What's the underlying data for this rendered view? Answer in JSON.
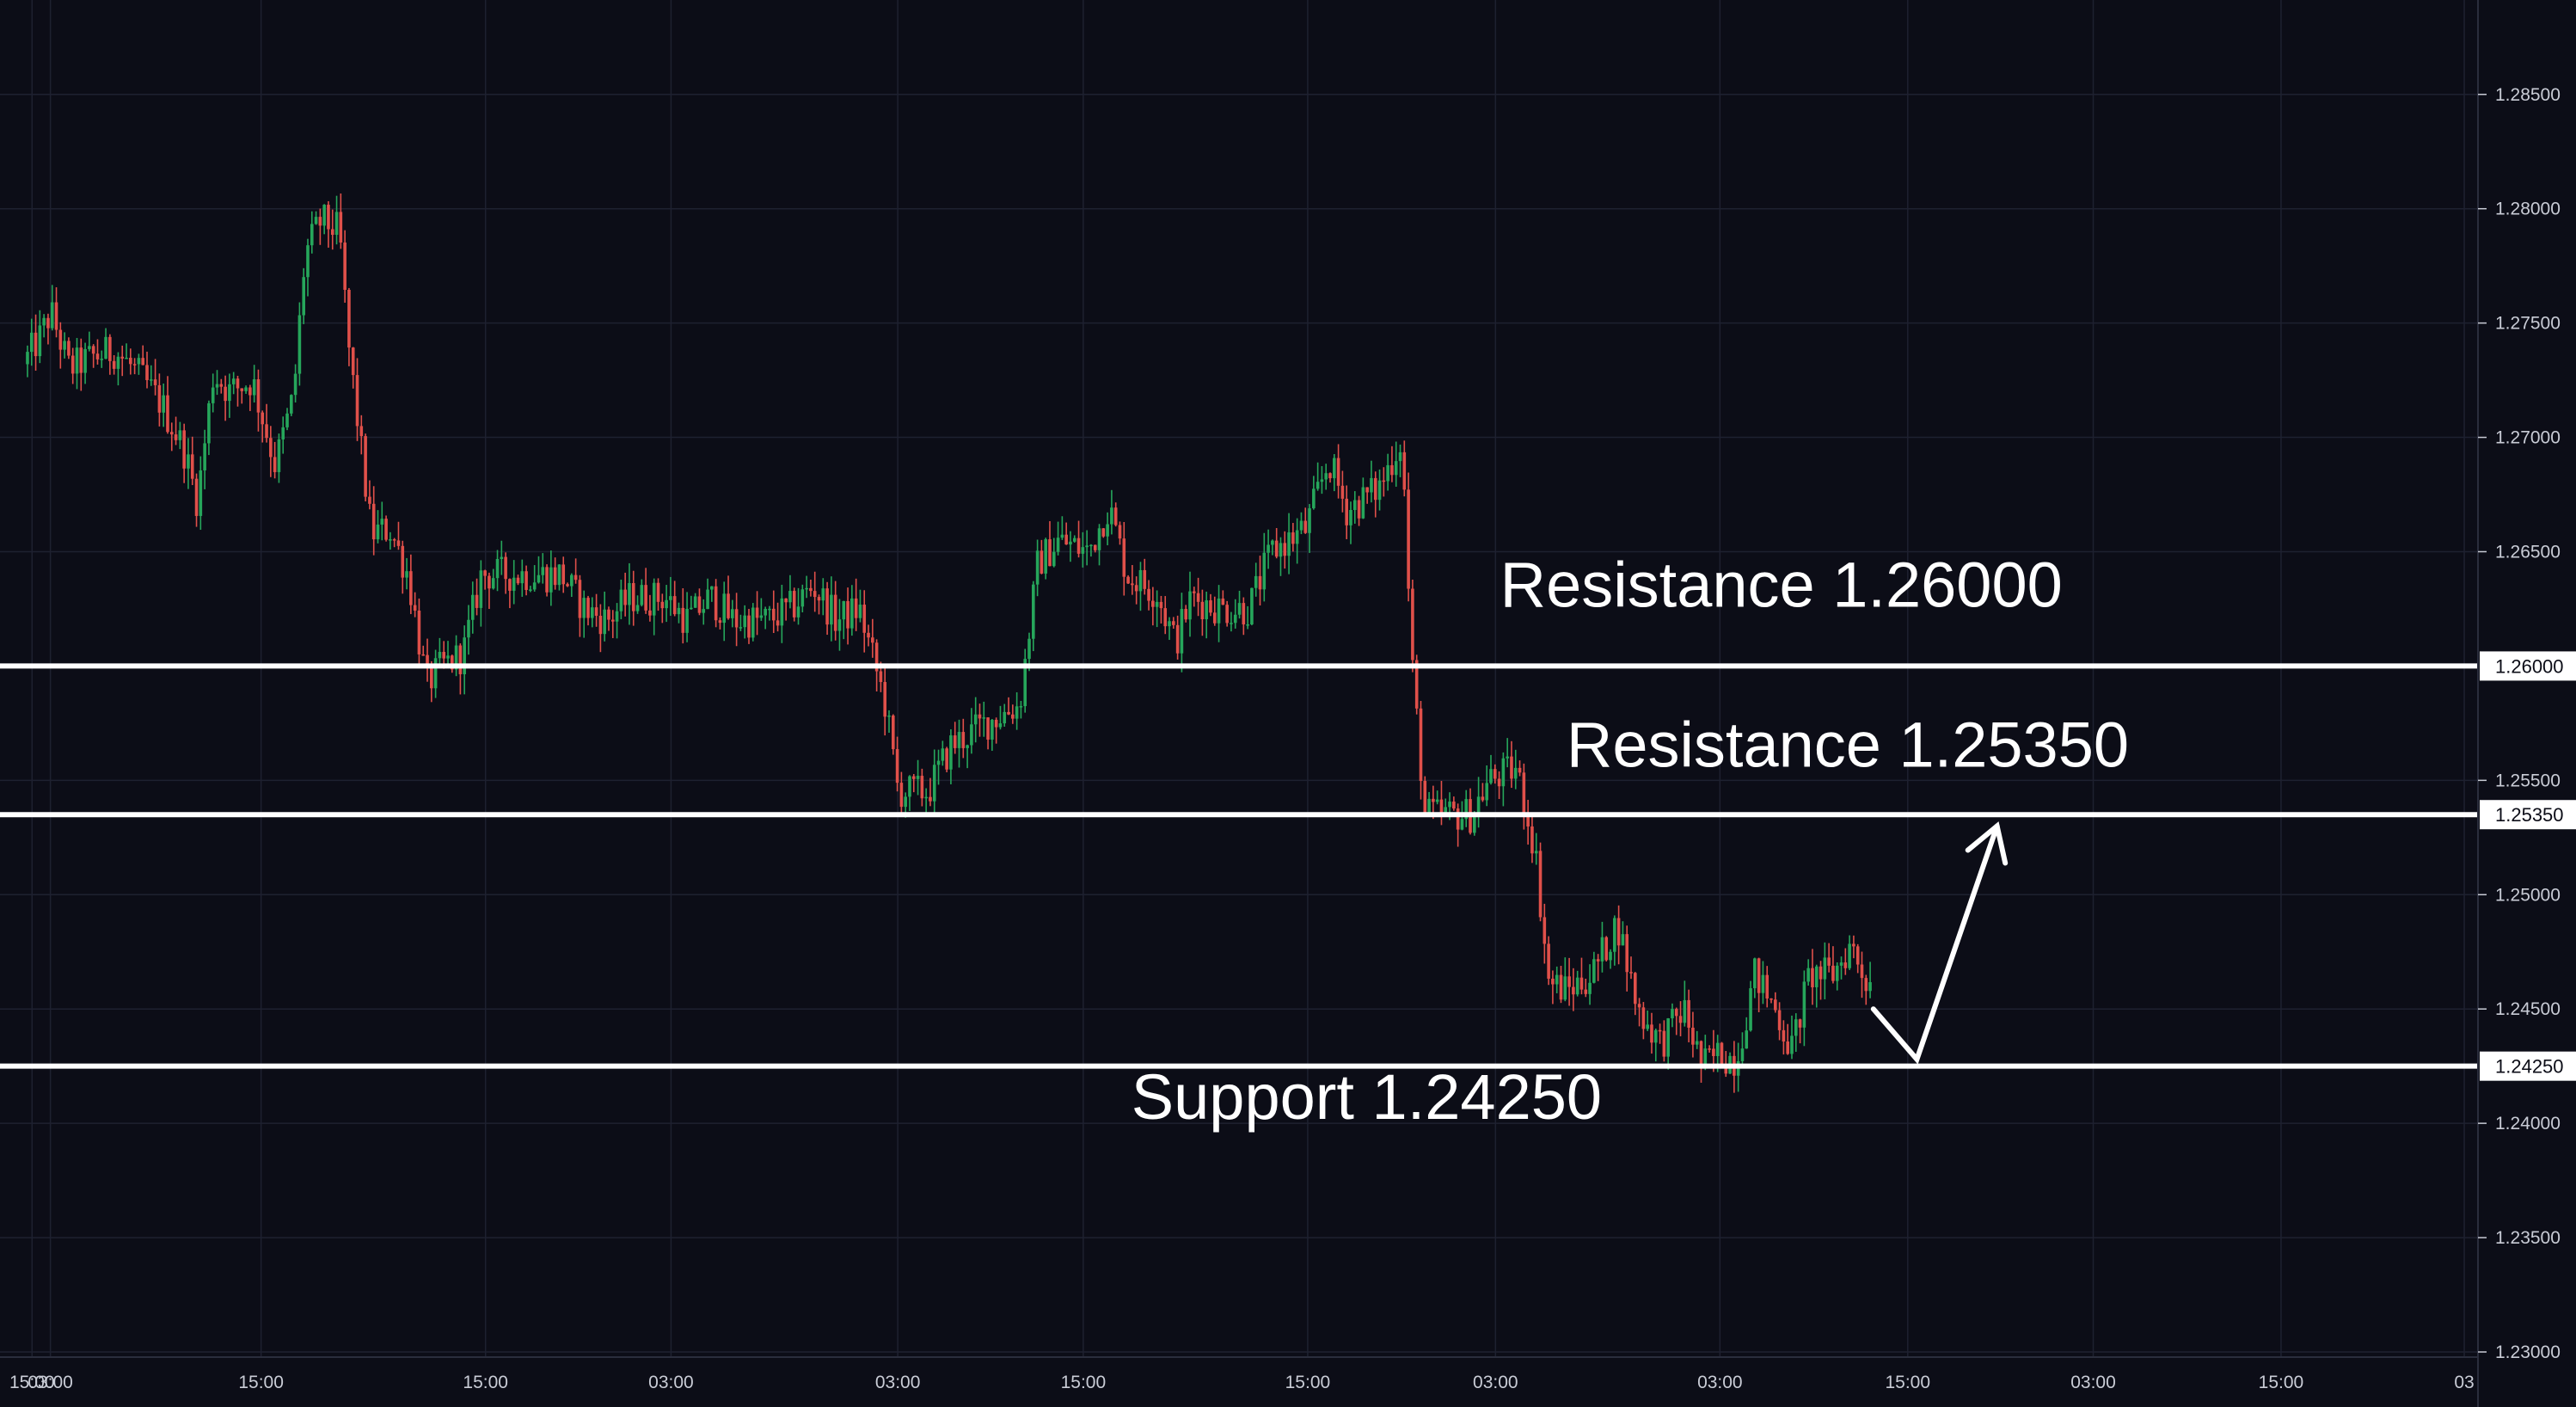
{
  "colors": {
    "background": "#0c0d17",
    "grid": "#1e2130",
    "axis_text": "#c9ccd6",
    "candle_up": "#26a65b",
    "candle_down": "#e0504a",
    "level_line": "#ffffff",
    "level_label_bg": "#ffffff",
    "level_label_text": "#0c0d17",
    "annotation": "#ffffff"
  },
  "chart_data": {
    "type": "candlestick",
    "title": "",
    "xlabel": "",
    "ylabel": "",
    "grid": true,
    "ylim": [
      1.23,
      1.288
    ],
    "y_axis_side": "right",
    "y_ticks": [
      "1.28500",
      "1.28000",
      "1.27500",
      "1.27000",
      "1.26500",
      "1.25500",
      "1.25000",
      "1.24500",
      "1.24000",
      "1.23500",
      "1.23000"
    ],
    "x_ticks": [
      "15:00",
      "03:00",
      "15:00",
      "15:00",
      "03:00",
      "03:00",
      "15:00",
      "15:00",
      "03:00",
      "03:00",
      "15:00",
      "03:00",
      "15:00",
      "03"
    ],
    "x_tick_positions": [
      0.2,
      1.0,
      10.2,
      20.0,
      28.1,
      38.0,
      46.1,
      55.9,
      64.1,
      73.9,
      82.1,
      90.2,
      98.4,
      106.4
    ],
    "x_range": [
      -1.2,
      107.0
    ],
    "price_path": [
      [
        0,
        1.2732
      ],
      [
        0.8,
        1.2745
      ],
      [
        1.2,
        1.2755
      ],
      [
        2.0,
        1.273
      ],
      [
        3.0,
        1.2735
      ],
      [
        4.0,
        1.2738
      ],
      [
        5.0,
        1.2728
      ],
      [
        6.0,
        1.2715
      ],
      [
        7.0,
        1.2695
      ],
      [
        7.6,
        1.2672
      ],
      [
        8.3,
        1.2728
      ],
      [
        9.0,
        1.272
      ],
      [
        10.0,
        1.2725
      ],
      [
        11.0,
        1.2688
      ],
      [
        11.8,
        1.2718
      ],
      [
        12.3,
        1.278
      ],
      [
        13.0,
        1.2795
      ],
      [
        13.8,
        1.279
      ],
      [
        14.2,
        1.274
      ],
      [
        14.8,
        1.269
      ],
      [
        15.2,
        1.2658
      ],
      [
        16.0,
        1.266
      ],
      [
        16.8,
        1.264
      ],
      [
        17.6,
        1.2592
      ],
      [
        18.3,
        1.26
      ],
      [
        19.2,
        1.2605
      ],
      [
        20.0,
        1.264
      ],
      [
        21.0,
        1.264
      ],
      [
        22.0,
        1.264
      ],
      [
        23.5,
        1.264
      ],
      [
        24.5,
        1.2625
      ],
      [
        25.5,
        1.262
      ],
      [
        26.5,
        1.263
      ],
      [
        28.0,
        1.263
      ],
      [
        29.0,
        1.262
      ],
      [
        30.0,
        1.263
      ],
      [
        31.0,
        1.262
      ],
      [
        32.5,
        1.262
      ],
      [
        33.5,
        1.2625
      ],
      [
        34.5,
        1.2635
      ],
      [
        35.5,
        1.262
      ],
      [
        36.5,
        1.2625
      ],
      [
        37.6,
        1.2585
      ],
      [
        38.2,
        1.2545
      ],
      [
        39.5,
        1.2545
      ],
      [
        40.5,
        1.2565
      ],
      [
        42.0,
        1.2575
      ],
      [
        43.5,
        1.2583
      ],
      [
        44.3,
        1.2645
      ],
      [
        45.2,
        1.2655
      ],
      [
        46.5,
        1.265
      ],
      [
        47.4,
        1.267
      ],
      [
        48.2,
        1.264
      ],
      [
        49.5,
        1.2632
      ],
      [
        50.3,
        1.261
      ],
      [
        51.0,
        1.263
      ],
      [
        52.3,
        1.2625
      ],
      [
        53.5,
        1.2625
      ],
      [
        54.5,
        1.265
      ],
      [
        56.0,
        1.266
      ],
      [
        57.0,
        1.269
      ],
      [
        57.8,
        1.2668
      ],
      [
        59.2,
        1.2678
      ],
      [
        60.2,
        1.27
      ],
      [
        60.6,
        1.2605
      ],
      [
        61.2,
        1.2535
      ],
      [
        62.5,
        1.2535
      ],
      [
        63.2,
        1.2535
      ],
      [
        64.0,
        1.255
      ],
      [
        65.2,
        1.2555
      ],
      [
        66.0,
        1.252
      ],
      [
        66.6,
        1.2462
      ],
      [
        67.4,
        1.2458
      ],
      [
        68.5,
        1.2465
      ],
      [
        69.6,
        1.2488
      ],
      [
        70.5,
        1.245
      ],
      [
        71.5,
        1.2435
      ],
      [
        72.5,
        1.245
      ],
      [
        73.3,
        1.2425
      ],
      [
        74.0,
        1.243
      ],
      [
        74.8,
        1.2428
      ],
      [
        75.6,
        1.2465
      ],
      [
        76.5,
        1.245
      ],
      [
        77.2,
        1.2432
      ],
      [
        78.0,
        1.2465
      ],
      [
        79.0,
        1.2465
      ],
      [
        79.8,
        1.2478
      ],
      [
        80.5,
        1.2462
      ]
    ],
    "series": [
      {
        "name": "",
        "type": "horizontal_line",
        "value": 1.26
      },
      {
        "name": "",
        "type": "horizontal_line",
        "value": 1.2535
      },
      {
        "name": "",
        "type": "horizontal_line",
        "value": 1.2425
      }
    ],
    "levels": [
      {
        "value": 1.26,
        "label": "Resistance 1.26000",
        "price_label": "1.26000",
        "label_x": 64.3,
        "label_y": 1.2626
      },
      {
        "value": 1.2535,
        "label": "Resistance 1.25350",
        "price_label": "1.25350",
        "label_x": 67.2,
        "label_y": 1.2556
      },
      {
        "value": 1.2425,
        "label": "Support 1.24250",
        "price_label": "1.24250",
        "label_x": 48.2,
        "label_y": 1.2402
      }
    ],
    "projection": {
      "type": "arrow",
      "points": [
        [
          80.6,
          1.245
        ],
        [
          82.5,
          1.2428
        ],
        [
          86.0,
          1.253
        ]
      ]
    }
  }
}
